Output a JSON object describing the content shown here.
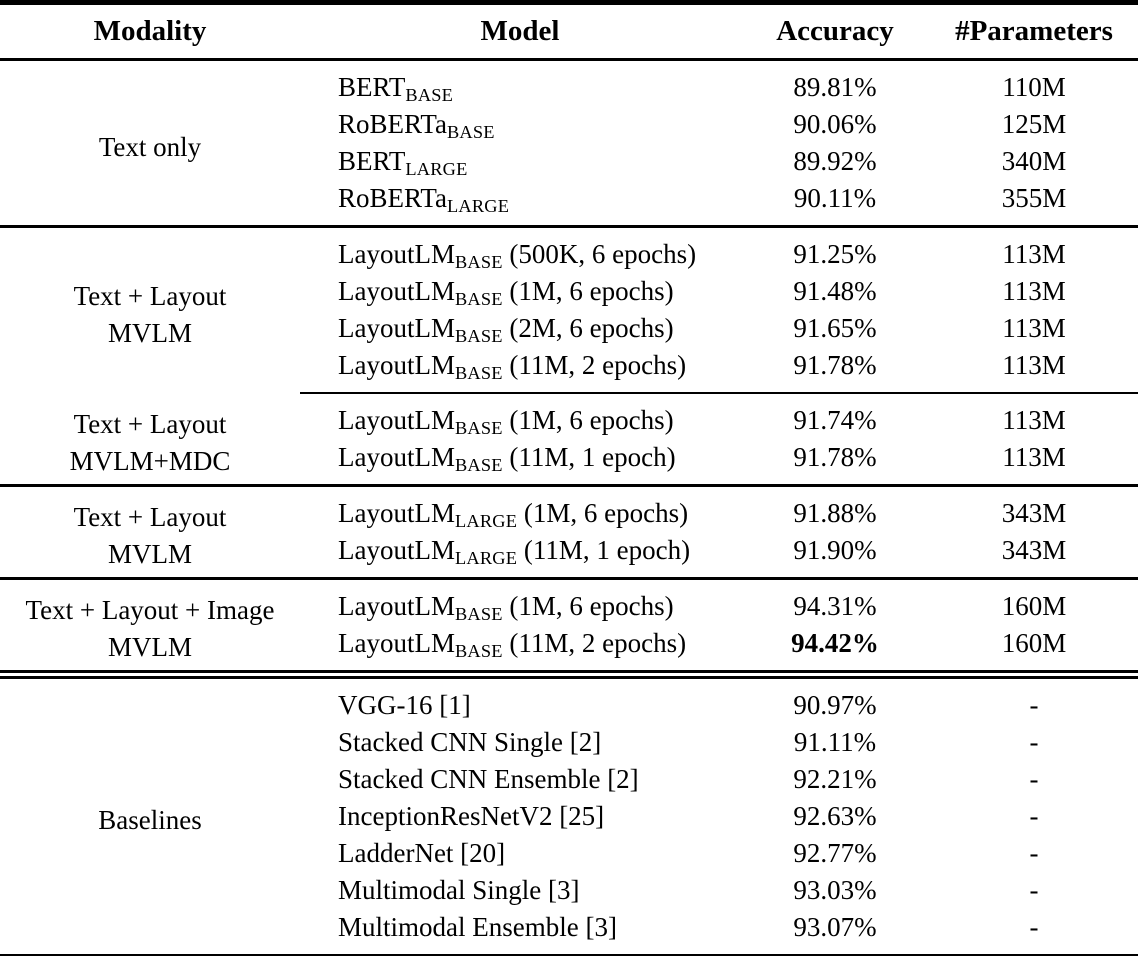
{
  "colors": {
    "background": "#ffffff",
    "text": "#000000",
    "rule": "#000000"
  },
  "table": {
    "columns": [
      "Modality",
      "Model",
      "Accuracy",
      "#Parameters"
    ],
    "sections": [
      {
        "modality": {
          "line1": "Text only"
        },
        "rows": [
          {
            "model": {
              "name": "BERT",
              "sub": "BASE",
              "suffix": ""
            },
            "accuracy": "89.81%",
            "parameters": "110M"
          },
          {
            "model": {
              "name": "RoBERTa",
              "sub": "BASE",
              "suffix": ""
            },
            "accuracy": "90.06%",
            "parameters": "125M"
          },
          {
            "model": {
              "name": "BERT",
              "sub": "LARGE",
              "suffix": ""
            },
            "accuracy": "89.92%",
            "parameters": "340M"
          },
          {
            "model": {
              "name": "RoBERTa",
              "sub": "LARGE",
              "suffix": ""
            },
            "accuracy": "90.11%",
            "parameters": "355M"
          }
        ]
      },
      {
        "modality": {
          "line1": "Text + Layout",
          "line2": "MVLM"
        },
        "rows": [
          {
            "model": {
              "name": "LayoutLM",
              "sub": "BASE",
              "suffix": " (500K, 6 epochs)"
            },
            "accuracy": "91.25%",
            "parameters": "113M"
          },
          {
            "model": {
              "name": "LayoutLM",
              "sub": "BASE",
              "suffix": " (1M, 6 epochs)"
            },
            "accuracy": "91.48%",
            "parameters": "113M"
          },
          {
            "model": {
              "name": "LayoutLM",
              "sub": "BASE",
              "suffix": " (2M, 6 epochs)"
            },
            "accuracy": "91.65%",
            "parameters": "113M"
          },
          {
            "model": {
              "name": "LayoutLM",
              "sub": "BASE",
              "suffix": " (11M, 2 epochs)"
            },
            "accuracy": "91.78%",
            "parameters": "113M"
          }
        ]
      },
      {
        "modality": {
          "line1": "Text + Layout",
          "line2": "MVLM+MDC"
        },
        "rows": [
          {
            "model": {
              "name": "LayoutLM",
              "sub": "BASE",
              "suffix": " (1M, 6 epochs)"
            },
            "accuracy": "91.74%",
            "parameters": "113M"
          },
          {
            "model": {
              "name": "LayoutLM",
              "sub": "BASE",
              "suffix": " (11M, 1 epoch)"
            },
            "accuracy": "91.78%",
            "parameters": "113M"
          }
        ]
      },
      {
        "modality": {
          "line1": "Text + Layout",
          "line2": "MVLM"
        },
        "rows": [
          {
            "model": {
              "name": "LayoutLM",
              "sub": "LARGE",
              "suffix": " (1M, 6 epochs)"
            },
            "accuracy": "91.88%",
            "parameters": "343M"
          },
          {
            "model": {
              "name": "LayoutLM",
              "sub": "LARGE",
              "suffix": " (11M, 1 epoch)"
            },
            "accuracy": "91.90%",
            "parameters": "343M"
          }
        ]
      },
      {
        "modality": {
          "line1": "Text + Layout + Image",
          "line2": "MVLM"
        },
        "rows": [
          {
            "model": {
              "name": "LayoutLM",
              "sub": "BASE",
              "suffix": " (1M, 6 epochs)"
            },
            "accuracy": "94.31%",
            "parameters": "160M"
          },
          {
            "model": {
              "name": "LayoutLM",
              "sub": "BASE",
              "suffix": " (11M, 2 epochs)"
            },
            "accuracy": "94.42%",
            "parameters": "160M",
            "accuracy_bold": true
          }
        ]
      },
      {
        "modality": {
          "line1": "Baselines"
        },
        "rows": [
          {
            "model": {
              "name": "VGG-16 [1]"
            },
            "accuracy": "90.97%",
            "parameters": "-"
          },
          {
            "model": {
              "name": "Stacked CNN Single [2]"
            },
            "accuracy": "91.11%",
            "parameters": "-"
          },
          {
            "model": {
              "name": "Stacked CNN Ensemble [2]"
            },
            "accuracy": "92.21%",
            "parameters": "-"
          },
          {
            "model": {
              "name": "InceptionResNetV2 [25]"
            },
            "accuracy": "92.63%",
            "parameters": "-"
          },
          {
            "model": {
              "name": "LadderNet [20]"
            },
            "accuracy": "92.77%",
            "parameters": "-"
          },
          {
            "model": {
              "name": "Multimodal Single [3]"
            },
            "accuracy": "93.03%",
            "parameters": "-"
          },
          {
            "model": {
              "name": "Multimodal Ensemble [3]"
            },
            "accuracy": "93.07%",
            "parameters": "-"
          }
        ]
      }
    ]
  }
}
